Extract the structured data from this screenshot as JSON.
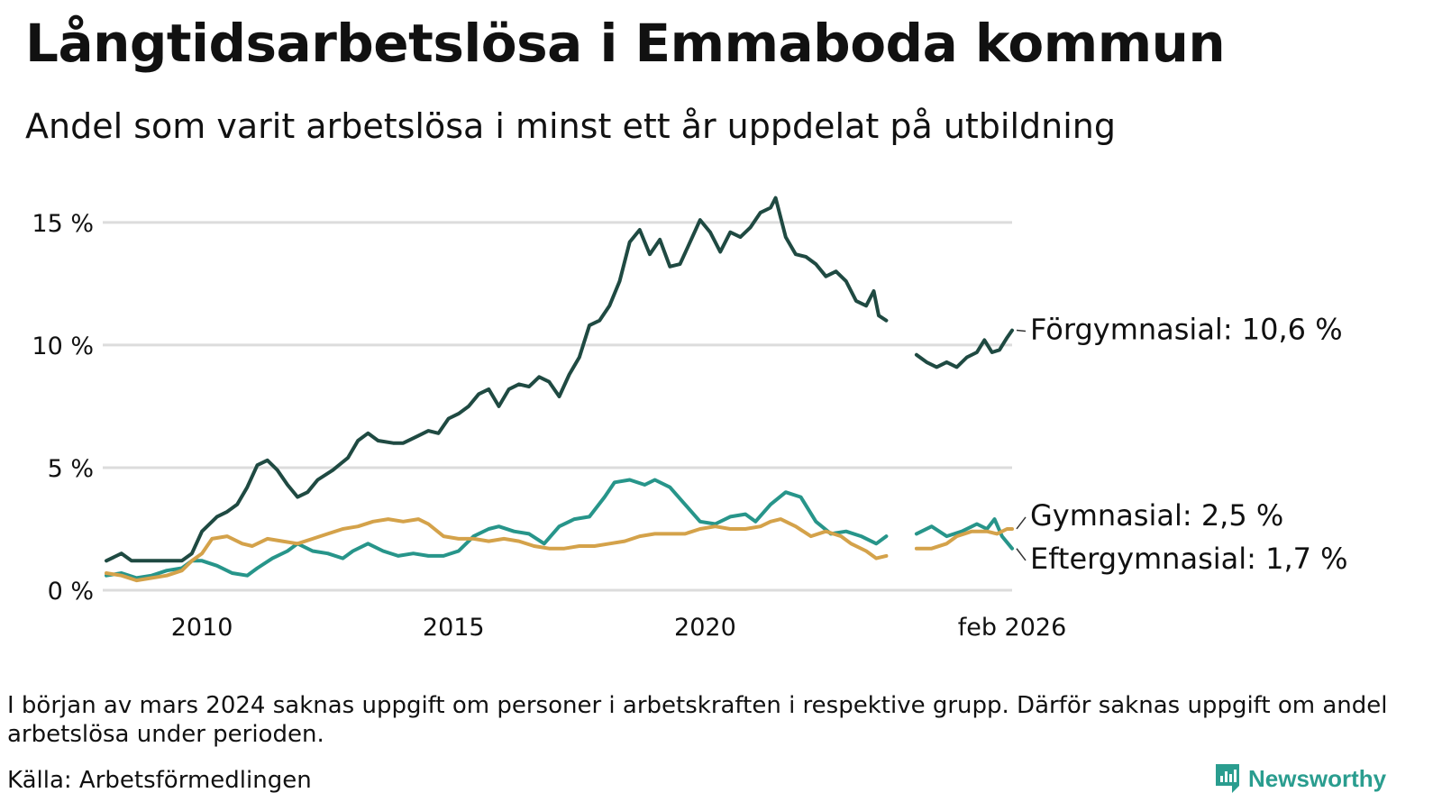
{
  "title": "Långtidsarbetslösa i Emmaboda kommun",
  "subtitle": "Andel som varit arbetslösa i minst ett år uppdelat på utbildning",
  "footnote": "I början av mars 2024 saknas uppgift om personer i arbetskraften i respektive grupp. Därför saknas uppgift om andel arbetslösa under perioden.",
  "source": "Källa: Arbetsförmedlingen",
  "brand": {
    "name": "Newsworthy",
    "icon": "newsworthy-logo-icon",
    "color": "#2a9d8f"
  },
  "chart_data": {
    "type": "line",
    "title": "Långtidsarbetslösa i Emmaboda kommun",
    "subtitle": "Andel som varit arbetslösa i minst ett år uppdelat på utbildning",
    "xlabel": "",
    "ylabel": "",
    "x_range": [
      2008.1,
      2026.1
    ],
    "ylim": [
      0,
      16.5
    ],
    "y_ticks": [
      {
        "value": 0,
        "label": "0 %"
      },
      {
        "value": 5,
        "label": "5 %"
      },
      {
        "value": 10,
        "label": "10 %"
      },
      {
        "value": 15,
        "label": "15 %"
      }
    ],
    "x_ticks": [
      {
        "value": 2010,
        "label": "2010"
      },
      {
        "value": 2015,
        "label": "2015"
      },
      {
        "value": 2020,
        "label": "2020"
      },
      {
        "value": 2026.1,
        "label": "feb 2026"
      }
    ],
    "grid": true,
    "gap": {
      "from": 2023.6,
      "to": 2024.2
    },
    "series": [
      {
        "name": "Förgymnasial",
        "color": "#1f4a42",
        "label": "Förgymnasial: 10,6 %",
        "points": [
          [
            2008.1,
            1.2
          ],
          [
            2008.4,
            1.5
          ],
          [
            2008.6,
            1.2
          ],
          [
            2009.0,
            1.2
          ],
          [
            2009.3,
            1.2
          ],
          [
            2009.6,
            1.2
          ],
          [
            2009.8,
            1.5
          ],
          [
            2010.0,
            2.4
          ],
          [
            2010.3,
            3.0
          ],
          [
            2010.5,
            3.2
          ],
          [
            2010.7,
            3.5
          ],
          [
            2010.9,
            4.2
          ],
          [
            2011.1,
            5.1
          ],
          [
            2011.3,
            5.3
          ],
          [
            2011.5,
            4.9
          ],
          [
            2011.7,
            4.3
          ],
          [
            2011.9,
            3.8
          ],
          [
            2012.1,
            4.0
          ],
          [
            2012.3,
            4.5
          ],
          [
            2012.6,
            4.9
          ],
          [
            2012.9,
            5.4
          ],
          [
            2013.1,
            6.1
          ],
          [
            2013.3,
            6.4
          ],
          [
            2013.5,
            6.1
          ],
          [
            2013.8,
            6.0
          ],
          [
            2014.0,
            6.0
          ],
          [
            2014.3,
            6.3
          ],
          [
            2014.5,
            6.5
          ],
          [
            2014.7,
            6.4
          ],
          [
            2014.9,
            7.0
          ],
          [
            2015.1,
            7.2
          ],
          [
            2015.3,
            7.5
          ],
          [
            2015.5,
            8.0
          ],
          [
            2015.7,
            8.2
          ],
          [
            2015.9,
            7.5
          ],
          [
            2016.1,
            8.2
          ],
          [
            2016.3,
            8.4
          ],
          [
            2016.5,
            8.3
          ],
          [
            2016.7,
            8.7
          ],
          [
            2016.9,
            8.5
          ],
          [
            2017.1,
            7.9
          ],
          [
            2017.3,
            8.8
          ],
          [
            2017.5,
            9.5
          ],
          [
            2017.7,
            10.8
          ],
          [
            2017.9,
            11.0
          ],
          [
            2018.1,
            11.6
          ],
          [
            2018.3,
            12.6
          ],
          [
            2018.5,
            14.2
          ],
          [
            2018.7,
            14.7
          ],
          [
            2018.9,
            13.7
          ],
          [
            2019.1,
            14.3
          ],
          [
            2019.3,
            13.2
          ],
          [
            2019.5,
            13.3
          ],
          [
            2019.7,
            14.2
          ],
          [
            2019.9,
            15.1
          ],
          [
            2020.1,
            14.6
          ],
          [
            2020.3,
            13.8
          ],
          [
            2020.5,
            14.6
          ],
          [
            2020.7,
            14.4
          ],
          [
            2020.9,
            14.8
          ],
          [
            2021.1,
            15.4
          ],
          [
            2021.3,
            15.6
          ],
          [
            2021.4,
            16.0
          ],
          [
            2021.6,
            14.4
          ],
          [
            2021.8,
            13.7
          ],
          [
            2022.0,
            13.6
          ],
          [
            2022.2,
            13.3
          ],
          [
            2022.4,
            12.8
          ],
          [
            2022.6,
            13.0
          ],
          [
            2022.8,
            12.6
          ],
          [
            2023.0,
            11.8
          ],
          [
            2023.2,
            11.6
          ],
          [
            2023.35,
            12.2
          ],
          [
            2023.45,
            11.2
          ],
          [
            2023.6,
            11.0
          ],
          null,
          [
            2024.2,
            9.6
          ],
          [
            2024.4,
            9.3
          ],
          [
            2024.6,
            9.1
          ],
          [
            2024.8,
            9.3
          ],
          [
            2025.0,
            9.1
          ],
          [
            2025.2,
            9.5
          ],
          [
            2025.4,
            9.7
          ],
          [
            2025.55,
            10.2
          ],
          [
            2025.7,
            9.7
          ],
          [
            2025.85,
            9.8
          ],
          [
            2026.0,
            10.3
          ],
          [
            2026.1,
            10.6
          ]
        ]
      },
      {
        "name": "Gymnasial",
        "color": "#d4a24a",
        "label": "Gymnasial:  2,5 %",
        "points": [
          [
            2008.1,
            0.7
          ],
          [
            2008.4,
            0.6
          ],
          [
            2008.7,
            0.4
          ],
          [
            2009.0,
            0.5
          ],
          [
            2009.3,
            0.6
          ],
          [
            2009.6,
            0.8
          ],
          [
            2009.8,
            1.2
          ],
          [
            2010.0,
            1.5
          ],
          [
            2010.2,
            2.1
          ],
          [
            2010.5,
            2.2
          ],
          [
            2010.8,
            1.9
          ],
          [
            2011.0,
            1.8
          ],
          [
            2011.3,
            2.1
          ],
          [
            2011.6,
            2.0
          ],
          [
            2011.9,
            1.9
          ],
          [
            2012.2,
            2.1
          ],
          [
            2012.5,
            2.3
          ],
          [
            2012.8,
            2.5
          ],
          [
            2013.1,
            2.6
          ],
          [
            2013.4,
            2.8
          ],
          [
            2013.7,
            2.9
          ],
          [
            2014.0,
            2.8
          ],
          [
            2014.3,
            2.9
          ],
          [
            2014.5,
            2.7
          ],
          [
            2014.8,
            2.2
          ],
          [
            2015.1,
            2.1
          ],
          [
            2015.4,
            2.1
          ],
          [
            2015.7,
            2.0
          ],
          [
            2016.0,
            2.1
          ],
          [
            2016.3,
            2.0
          ],
          [
            2016.6,
            1.8
          ],
          [
            2016.9,
            1.7
          ],
          [
            2017.2,
            1.7
          ],
          [
            2017.5,
            1.8
          ],
          [
            2017.8,
            1.8
          ],
          [
            2018.1,
            1.9
          ],
          [
            2018.4,
            2.0
          ],
          [
            2018.7,
            2.2
          ],
          [
            2019.0,
            2.3
          ],
          [
            2019.3,
            2.3
          ],
          [
            2019.6,
            2.3
          ],
          [
            2019.9,
            2.5
          ],
          [
            2020.2,
            2.6
          ],
          [
            2020.5,
            2.5
          ],
          [
            2020.8,
            2.5
          ],
          [
            2021.1,
            2.6
          ],
          [
            2021.3,
            2.8
          ],
          [
            2021.5,
            2.9
          ],
          [
            2021.8,
            2.6
          ],
          [
            2022.1,
            2.2
          ],
          [
            2022.4,
            2.4
          ],
          [
            2022.7,
            2.2
          ],
          [
            2022.9,
            1.9
          ],
          [
            2023.2,
            1.6
          ],
          [
            2023.4,
            1.3
          ],
          [
            2023.6,
            1.4
          ],
          null,
          [
            2024.2,
            1.7
          ],
          [
            2024.5,
            1.7
          ],
          [
            2024.8,
            1.9
          ],
          [
            2025.0,
            2.2
          ],
          [
            2025.3,
            2.4
          ],
          [
            2025.6,
            2.4
          ],
          [
            2025.8,
            2.3
          ],
          [
            2026.0,
            2.5
          ],
          [
            2026.1,
            2.5
          ]
        ]
      },
      {
        "name": "Eftergymnasial",
        "color": "#27958a",
        "label": "Eftergymnasial:  1,7 %",
        "points": [
          [
            2008.1,
            0.6
          ],
          [
            2008.4,
            0.7
          ],
          [
            2008.7,
            0.5
          ],
          [
            2009.0,
            0.6
          ],
          [
            2009.3,
            0.8
          ],
          [
            2009.6,
            0.9
          ],
          [
            2009.8,
            1.2
          ],
          [
            2010.0,
            1.2
          ],
          [
            2010.3,
            1.0
          ],
          [
            2010.6,
            0.7
          ],
          [
            2010.9,
            0.6
          ],
          [
            2011.1,
            0.9
          ],
          [
            2011.4,
            1.3
          ],
          [
            2011.7,
            1.6
          ],
          [
            2011.9,
            1.9
          ],
          [
            2012.2,
            1.6
          ],
          [
            2012.5,
            1.5
          ],
          [
            2012.8,
            1.3
          ],
          [
            2013.0,
            1.6
          ],
          [
            2013.3,
            1.9
          ],
          [
            2013.6,
            1.6
          ],
          [
            2013.9,
            1.4
          ],
          [
            2014.2,
            1.5
          ],
          [
            2014.5,
            1.4
          ],
          [
            2014.8,
            1.4
          ],
          [
            2015.1,
            1.6
          ],
          [
            2015.4,
            2.2
          ],
          [
            2015.7,
            2.5
          ],
          [
            2015.9,
            2.6
          ],
          [
            2016.2,
            2.4
          ],
          [
            2016.5,
            2.3
          ],
          [
            2016.8,
            1.9
          ],
          [
            2017.1,
            2.6
          ],
          [
            2017.4,
            2.9
          ],
          [
            2017.7,
            3.0
          ],
          [
            2018.0,
            3.8
          ],
          [
            2018.2,
            4.4
          ],
          [
            2018.5,
            4.5
          ],
          [
            2018.8,
            4.3
          ],
          [
            2019.0,
            4.5
          ],
          [
            2019.3,
            4.2
          ],
          [
            2019.6,
            3.5
          ],
          [
            2019.9,
            2.8
          ],
          [
            2020.2,
            2.7
          ],
          [
            2020.5,
            3.0
          ],
          [
            2020.8,
            3.1
          ],
          [
            2021.0,
            2.8
          ],
          [
            2021.3,
            3.5
          ],
          [
            2021.6,
            4.0
          ],
          [
            2021.9,
            3.8
          ],
          [
            2022.2,
            2.8
          ],
          [
            2022.5,
            2.3
          ],
          [
            2022.8,
            2.4
          ],
          [
            2023.1,
            2.2
          ],
          [
            2023.4,
            1.9
          ],
          [
            2023.6,
            2.2
          ],
          null,
          [
            2024.2,
            2.3
          ],
          [
            2024.5,
            2.6
          ],
          [
            2024.8,
            2.2
          ],
          [
            2025.1,
            2.4
          ],
          [
            2025.4,
            2.7
          ],
          [
            2025.6,
            2.5
          ],
          [
            2025.75,
            2.9
          ],
          [
            2025.9,
            2.2
          ],
          [
            2026.1,
            1.7
          ]
        ]
      }
    ]
  }
}
